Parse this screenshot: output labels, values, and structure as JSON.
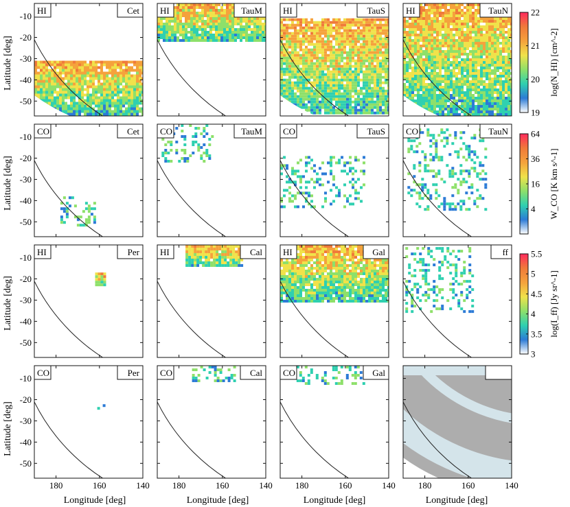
{
  "figure": {
    "xlabel": "Longitude [deg]",
    "ylabel": "Latitude [deg]",
    "x_ticks": [
      "180",
      "160",
      "140"
    ],
    "y_ticks": [
      "-10",
      "-20",
      "-30",
      "-40",
      "-50"
    ]
  },
  "chart_data": {
    "type": "heatmap",
    "grid": {
      "rows": 4,
      "cols": 4
    },
    "xlim": [
      190,
      140
    ],
    "ylim": [
      -57,
      -4
    ],
    "x_tick_values": [
      180,
      160,
      140
    ],
    "y_tick_values": [
      -10,
      -20,
      -30,
      -40,
      -50
    ],
    "panels": [
      {
        "row": 0,
        "col": 0,
        "tracer": "HI",
        "region": "Cet",
        "colorscale": "hi",
        "coverage": [
          [
            190,
            -56,
            140,
            -31
          ]
        ]
      },
      {
        "row": 0,
        "col": 1,
        "tracer": "HI",
        "region": "TauM",
        "colorscale": "hi",
        "coverage": [
          [
            190,
            -22,
            140,
            -4
          ]
        ]
      },
      {
        "row": 0,
        "col": 2,
        "tracer": "HI",
        "region": "TauS",
        "colorscale": "hi",
        "coverage": [
          [
            190,
            -56,
            140,
            -11
          ]
        ]
      },
      {
        "row": 0,
        "col": 3,
        "tracer": "HI",
        "region": "TauN",
        "colorscale": "hi",
        "coverage": [
          [
            190,
            -56,
            140,
            -4
          ]
        ]
      },
      {
        "row": 1,
        "col": 0,
        "tracer": "CO",
        "region": "Cet",
        "colorscale": "co",
        "coverage": [
          [
            178,
            -51,
            162,
            -38
          ]
        ]
      },
      {
        "row": 1,
        "col": 1,
        "tracer": "CO",
        "region": "TauM",
        "colorscale": "co",
        "coverage": [
          [
            188,
            -22,
            164,
            -4
          ]
        ]
      },
      {
        "row": 1,
        "col": 2,
        "tracer": "CO",
        "region": "TauS",
        "colorscale": "co",
        "coverage": [
          [
            190,
            -43,
            151,
            -19
          ]
        ]
      },
      {
        "row": 1,
        "col": 3,
        "tracer": "CO",
        "region": "TauN",
        "colorscale": "co",
        "coverage": [
          [
            188,
            -44,
            152,
            -6
          ]
        ]
      },
      {
        "row": 2,
        "col": 0,
        "tracer": "HI",
        "region": "Per",
        "colorscale": "hi",
        "coverage": [
          [
            162,
            -23,
            157,
            -17
          ]
        ]
      },
      {
        "row": 2,
        "col": 1,
        "tracer": "HI",
        "region": "Cal",
        "colorscale": "hi",
        "coverage": [
          [
            177,
            -14,
            151,
            -4
          ]
        ]
      },
      {
        "row": 2,
        "col": 2,
        "tracer": "HI",
        "region": "Gal",
        "colorscale": "hi",
        "coverage": [
          [
            190,
            -31,
            140,
            -4
          ]
        ]
      },
      {
        "row": 2,
        "col": 3,
        "tracer": "",
        "region": "ff",
        "colorscale": "ff",
        "coverage": [
          [
            189,
            -35,
            158,
            -5
          ]
        ]
      },
      {
        "row": 3,
        "col": 0,
        "tracer": "CO",
        "region": "Per",
        "colorscale": "co",
        "coverage": [
          [
            161,
            -24,
            158,
            -17
          ]
        ]
      },
      {
        "row": 3,
        "col": 1,
        "tracer": "CO",
        "region": "Cal",
        "colorscale": "co",
        "coverage": [
          [
            174,
            -11,
            155,
            -4
          ]
        ]
      },
      {
        "row": 3,
        "col": 2,
        "tracer": "CO",
        "region": "Gal",
        "colorscale": "co",
        "coverage": [
          [
            185,
            -12,
            152,
            -4
          ]
        ]
      },
      {
        "row": 3,
        "col": 3,
        "tracer": "",
        "region": "",
        "colorscale": "mask",
        "coverage": [
          [
            190,
            -56,
            140,
            -4
          ]
        ]
      }
    ],
    "colorbars": [
      {
        "id": "hi",
        "label": "log(N_HI) [cm^-2]",
        "ticks": [
          "19",
          "20",
          "21",
          "22"
        ],
        "colors": [
          "#ffffff",
          "#2c7bd6",
          "#2fd0b0",
          "#8ee06a",
          "#f0e24a",
          "#f5a23c",
          "#f07a3a",
          "#ff2a5c"
        ]
      },
      {
        "id": "co",
        "label": "W_CO [K km s^-1]",
        "ticks": [
          "4",
          "16",
          "36",
          "64"
        ],
        "colors": [
          "#ffffff",
          "#2c7bd6",
          "#2fd0b0",
          "#8ee06a",
          "#f0e24a",
          "#f5a23c",
          "#f07a3a",
          "#ff2a5c"
        ]
      },
      {
        "id": "ff",
        "label": "log(I_ff) [Jy sr^-1]",
        "ticks": [
          "3",
          "3.5",
          "4",
          "4.5",
          "5",
          "5.5"
        ],
        "colors": [
          "#ffffff",
          "#2c7bd6",
          "#2fd0b0",
          "#8ee06a",
          "#f0e24a",
          "#f5a23c",
          "#f07a3a",
          "#ff2a5c"
        ]
      }
    ],
    "mask_colors": [
      "#d4e4ea",
      "#adadad"
    ]
  }
}
